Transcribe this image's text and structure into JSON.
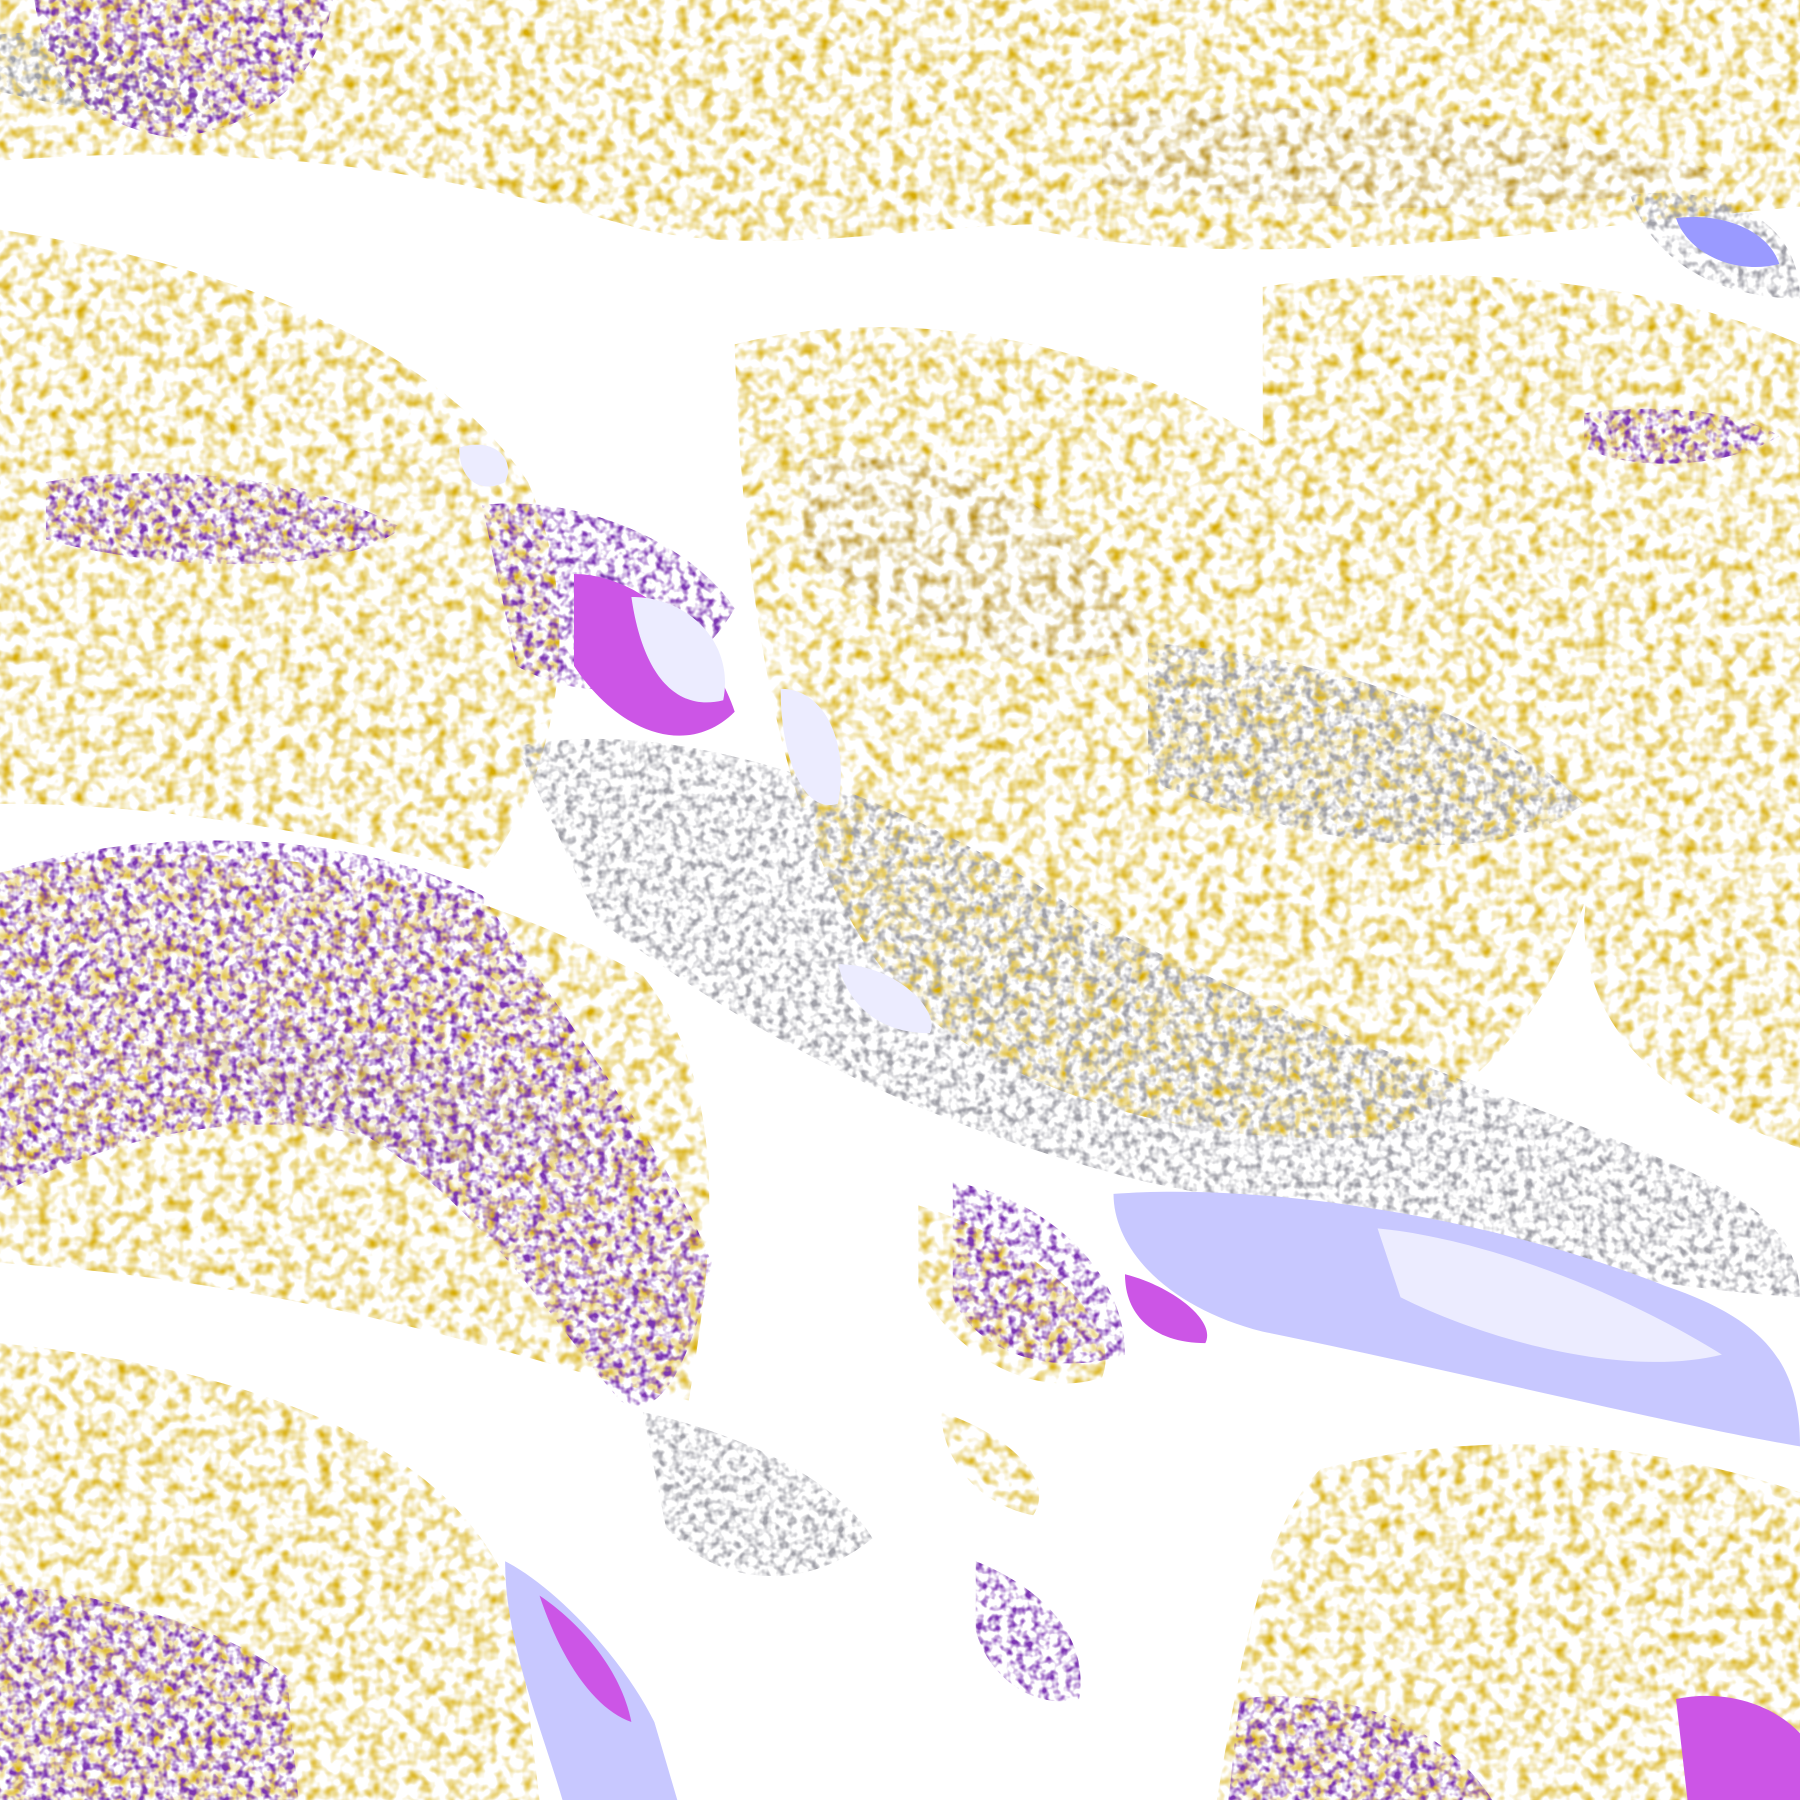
{
  "map": {
    "palette": {
      "background": "#ffffff",
      "gold": "#d6aa00",
      "dark_gold": "#b58a10",
      "purple": "#7b35b2",
      "magenta": "#cc55e6",
      "lavender": "#ececff",
      "periwinkle": "#9a9aff",
      "light_blue": "#c8c8ff",
      "gray": "#a0a0a8"
    }
  }
}
